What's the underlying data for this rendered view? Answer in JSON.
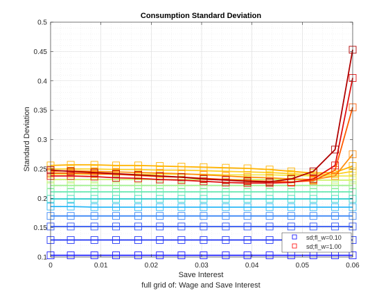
{
  "chart_data": {
    "type": "line",
    "title": "Consumption Standard Deviation",
    "xlabel": "Save Interest",
    "ylabel": "Standard Deviation",
    "caption": "full grid of: Wage and Save Interest",
    "xlim": [
      0,
      0.06
    ],
    "ylim": [
      0.1,
      0.5
    ],
    "xticks": [
      "0",
      "0.01",
      "0.02",
      "0.03",
      "0.04",
      "0.05",
      "0.06"
    ],
    "yticks": [
      "0.1",
      "0.15",
      "0.2",
      "0.25",
      "0.3",
      "0.35",
      "0.4",
      "0.45",
      "0.5"
    ],
    "grid": true,
    "marker": "square",
    "x": [
      0,
      0.004,
      0.0087,
      0.013,
      0.0174,
      0.0217,
      0.026,
      0.0304,
      0.0348,
      0.0391,
      0.0435,
      0.0478,
      0.0522,
      0.0565,
      0.06
    ],
    "legend": {
      "placement": "bottom-right",
      "entries": [
        {
          "label": "sd;fl_w=0.10",
          "color": "#0000ff"
        },
        {
          "label": "sd;fl_w=1.00",
          "color": "#ff0000"
        }
      ]
    },
    "series": [
      {
        "color": "#1a1aff",
        "values": [
          0.103,
          0.103,
          0.103,
          0.103,
          0.103,
          0.103,
          0.103,
          0.103,
          0.103,
          0.103,
          0.103,
          0.103,
          0.103,
          0.103,
          0.103
        ]
      },
      {
        "color": "#1f33f5",
        "values": [
          0.129,
          0.129,
          0.129,
          0.129,
          0.129,
          0.129,
          0.129,
          0.129,
          0.129,
          0.129,
          0.129,
          0.129,
          0.129,
          0.129,
          0.129
        ]
      },
      {
        "color": "#2f55f0",
        "values": [
          0.152,
          0.152,
          0.152,
          0.152,
          0.152,
          0.152,
          0.152,
          0.152,
          0.152,
          0.152,
          0.152,
          0.152,
          0.152,
          0.152,
          0.152
        ]
      },
      {
        "color": "#3a86f5",
        "values": [
          0.17,
          0.17,
          0.17,
          0.17,
          0.17,
          0.17,
          0.17,
          0.17,
          0.17,
          0.17,
          0.17,
          0.17,
          0.17,
          0.17,
          0.17
        ]
      },
      {
        "color": "#29b6f6",
        "values": [
          0.186,
          0.186,
          0.185,
          0.185,
          0.185,
          0.185,
          0.185,
          0.185,
          0.185,
          0.185,
          0.185,
          0.185,
          0.185,
          0.185,
          0.185
        ]
      },
      {
        "color": "#26d0ce",
        "values": [
          0.199,
          0.199,
          0.199,
          0.199,
          0.199,
          0.199,
          0.199,
          0.199,
          0.199,
          0.199,
          0.199,
          0.199,
          0.199,
          0.199,
          0.199
        ]
      },
      {
        "color": "#66e8b0",
        "values": [
          0.211,
          0.211,
          0.211,
          0.211,
          0.211,
          0.211,
          0.211,
          0.211,
          0.211,
          0.211,
          0.211,
          0.211,
          0.211,
          0.211,
          0.211
        ]
      },
      {
        "color": "#9cf08a",
        "values": [
          0.222,
          0.222,
          0.222,
          0.222,
          0.222,
          0.222,
          0.222,
          0.222,
          0.222,
          0.222,
          0.222,
          0.222,
          0.222,
          0.222,
          0.222
        ]
      },
      {
        "color": "#cdf26a",
        "values": [
          0.232,
          0.232,
          0.232,
          0.232,
          0.232,
          0.232,
          0.232,
          0.232,
          0.232,
          0.232,
          0.232,
          0.232,
          0.231,
          0.231,
          0.231
        ]
      },
      {
        "color": "#f2e94a",
        "values": [
          0.241,
          0.241,
          0.241,
          0.241,
          0.241,
          0.241,
          0.241,
          0.241,
          0.24,
          0.24,
          0.24,
          0.239,
          0.238,
          0.238,
          0.238
        ]
      },
      {
        "color": "#fcd027",
        "values": [
          0.25,
          0.25,
          0.25,
          0.249,
          0.249,
          0.248,
          0.248,
          0.247,
          0.246,
          0.245,
          0.244,
          0.242,
          0.24,
          0.241,
          0.246
        ]
      },
      {
        "color": "#ffb300",
        "values": [
          0.256,
          0.257,
          0.257,
          0.256,
          0.256,
          0.255,
          0.254,
          0.253,
          0.252,
          0.251,
          0.249,
          0.246,
          0.243,
          0.244,
          0.255
        ]
      },
      {
        "color": "#ff9010",
        "values": [
          0.246,
          0.247,
          0.246,
          0.245,
          0.244,
          0.243,
          0.242,
          0.24,
          0.238,
          0.236,
          0.235,
          0.233,
          0.232,
          0.238,
          0.275
        ]
      },
      {
        "color": "#ff5a00",
        "values": [
          0.243,
          0.243,
          0.242,
          0.241,
          0.239,
          0.237,
          0.236,
          0.234,
          0.232,
          0.23,
          0.229,
          0.228,
          0.23,
          0.248,
          0.355
        ]
      },
      {
        "color": "#e01010",
        "values": [
          0.238,
          0.238,
          0.237,
          0.235,
          0.234,
          0.232,
          0.231,
          0.229,
          0.227,
          0.226,
          0.226,
          0.227,
          0.233,
          0.256,
          0.405
        ]
      },
      {
        "color": "#b00000",
        "values": [
          0.248,
          0.246,
          0.244,
          0.242,
          0.24,
          0.238,
          0.236,
          0.233,
          0.231,
          0.229,
          0.228,
          0.233,
          0.246,
          0.283,
          0.453
        ]
      }
    ]
  }
}
